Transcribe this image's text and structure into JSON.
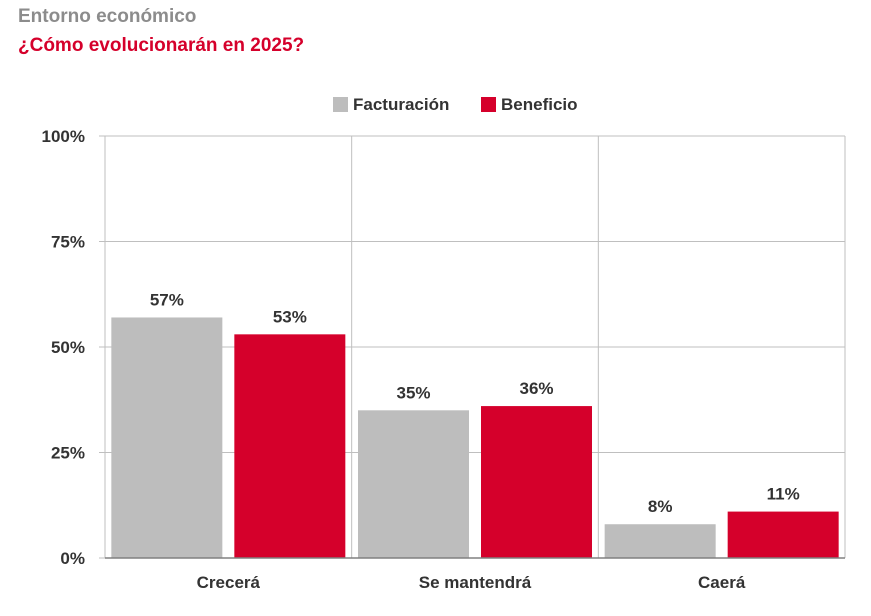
{
  "header": {
    "supertitle": "Entorno económico",
    "title": "¿Cómo evolucionarán en 2025?"
  },
  "colors": {
    "facturacion": "#bdbdbd",
    "beneficio": "#d5002b",
    "title_accent": "#d5002b",
    "supertitle": "#8c8c8c",
    "grid": "#bfbfbf"
  },
  "chart_data": {
    "type": "bar",
    "title": "¿Cómo evolucionarán en 2025?",
    "categories": [
      "Crecerá",
      "Se mantendrá",
      "Caerá"
    ],
    "series": [
      {
        "name": "Facturación",
        "values": [
          57,
          35,
          8
        ],
        "labels": [
          "57%",
          "35%",
          "8%"
        ]
      },
      {
        "name": "Beneficio",
        "values": [
          53,
          36,
          11
        ],
        "labels": [
          "53%",
          "36%",
          "11%"
        ]
      }
    ],
    "ylim": [
      0,
      100
    ],
    "yticks": [
      0,
      25,
      50,
      75,
      100
    ],
    "ytick_labels": [
      "0%",
      "25%",
      "50%",
      "75%",
      "100%"
    ],
    "xlabel": "",
    "ylabel": "",
    "grid": true,
    "legend_position": "top-center"
  }
}
